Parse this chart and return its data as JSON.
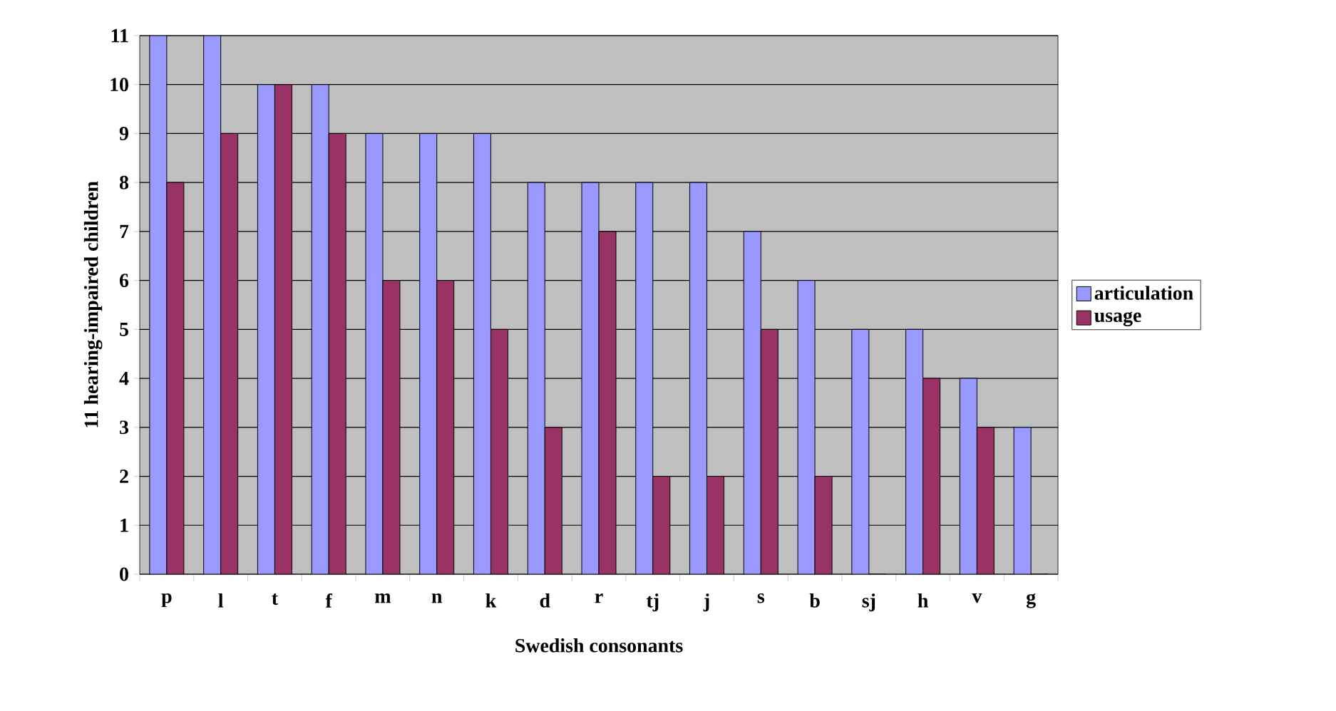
{
  "chart_data": {
    "type": "bar",
    "xlabel": "Swedish consonants",
    "ylabel": "11 hearing-impaired children",
    "categories": [
      "p",
      "l",
      "t",
      "f",
      "m",
      "n",
      "k",
      "d",
      "r",
      "tj",
      "j",
      "s",
      "b",
      "sj",
      "h",
      "v",
      "g"
    ],
    "series": [
      {
        "name": "articulation",
        "color": "#9999ff",
        "values": [
          11,
          11,
          10,
          10,
          9,
          9,
          9,
          8,
          8,
          8,
          8,
          7,
          6,
          5,
          5,
          4,
          3
        ]
      },
      {
        "name": "usage",
        "color": "#993366",
        "values": [
          8,
          9,
          10,
          9,
          6,
          6,
          5,
          3,
          7,
          2,
          2,
          5,
          2,
          0,
          4,
          3,
          0
        ]
      }
    ],
    "ylim": [
      0,
      11
    ],
    "yticks": [
      0,
      1,
      2,
      3,
      4,
      5,
      6,
      7,
      8,
      9,
      10,
      11
    ],
    "grid": "y",
    "legend": "right"
  }
}
